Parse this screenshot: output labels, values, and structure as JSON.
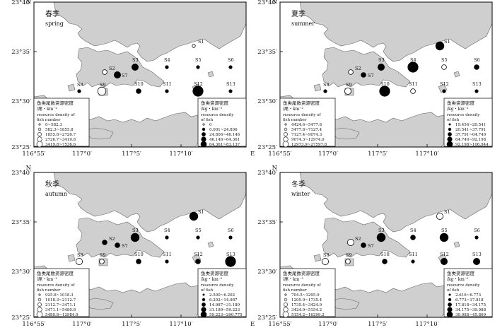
{
  "maps": [
    {
      "id": "spring",
      "season_cn": "春季",
      "season_en": "spring",
      "n_label": "N",
      "e_label": "E",
      "y_ticks": [
        "23°40′",
        "23°35′",
        "23°30′",
        "23°25′"
      ],
      "x_ticks": [
        "116°55′",
        "117°0′",
        "117°5′",
        "117°10′"
      ],
      "stations": {
        "S1": "S1",
        "S2": "S2",
        "S3": "S3",
        "S4": "S4",
        "S5": "S5",
        "S6": "S6",
        "S7": "S7",
        "S8": "S8",
        "S9": "S9",
        "S10": "S10",
        "S11": "S11",
        "S12": "S12",
        "S13": "S13"
      },
      "legend_number": {
        "title_cn_1": "鱼类尾数资源密度",
        "title_cn_2": "/尾・km⁻²",
        "title_en_1": "resource density of",
        "title_en_2": "fish number",
        "classes": [
          "0~582.3",
          "582.3~1855.8",
          "1855.8~2726.7",
          "2726.7~3419.8",
          "3419.8~7536.6"
        ]
      },
      "legend_weight": {
        "title_cn_1": "鱼类资源密度",
        "title_cn_2": "/kg・km⁻²",
        "title_en_1": "resource density",
        "title_en_2": "of fish",
        "classes": [
          "0",
          "0.001~24.806",
          "24.806~46.146",
          "46.146~64.361",
          "64.361~83.137"
        ]
      }
    },
    {
      "id": "summer",
      "season_cn": "夏季",
      "season_en": "summer",
      "n_label": "N",
      "e_label": "E",
      "y_ticks": [
        "23°40′",
        "23°35′",
        "23°30′",
        "23°25′"
      ],
      "x_ticks": [
        "116°55′",
        "117°0′",
        "117°5′",
        "117°10′"
      ],
      "stations": {
        "S1": "S1",
        "S2": "S2",
        "S3": "S3",
        "S4": "S4",
        "S5": "S5",
        "S6": "S6",
        "S7": "S7",
        "S8": "S8",
        "S9": "S9",
        "S10": "S10",
        "S11": "S11",
        "S12": "S12",
        "S13": "S13"
      },
      "legend_number": {
        "title_cn_1": "鱼类尾数资源密度",
        "title_cn_2": "/尾・km⁻²",
        "title_en_1": "resource density of",
        "title_en_2": "fish number",
        "classes": [
          "4424.6~5477.8",
          "5477.8~7127.4",
          "7127.4~9074.3",
          "9074.3~12974.0",
          "12973.9~27597.8"
        ]
      },
      "legend_weight": {
        "title_cn_1": "鱼类资源密度",
        "title_cn_2": "/kg・km⁻²",
        "title_en_1": "resource density",
        "title_en_2": "of fish",
        "classes": [
          "19.456~20.541",
          "20.541~37.791",
          "37.791~64.740",
          "64.740~92.198",
          "92.198~106.944"
        ]
      }
    },
    {
      "id": "autumn",
      "season_cn": "秋季",
      "season_en": "autumn",
      "n_label": "N",
      "e_label": "E",
      "y_ticks": [
        "23°40′",
        "23°35′",
        "23°30′",
        "23°25′"
      ],
      "x_ticks": [
        "116°55′",
        "117°0′",
        "117°5′",
        "117°10′"
      ],
      "stations": {
        "S1": "S1",
        "S2": "S2",
        "S3": "S3",
        "S4": "S4",
        "S5": "S5",
        "S6": "S6",
        "S7": "S7",
        "S8": "S8",
        "S9": "S9",
        "S10": "S10",
        "S11": "S11",
        "S12": "S12",
        "S13": "S13"
      },
      "legend_number": {
        "title_cn_1": "鱼类尾数资源密度",
        "title_cn_2": "/尾・km⁻²",
        "title_en_1": "resource density of",
        "title_en_2": "fish number",
        "classes": [
          "925.8~1018.3",
          "1018.3~2112.7",
          "2112.7~3471.1",
          "3471.1~5480.8",
          "5480.8~12984.9"
        ]
      },
      "legend_weight": {
        "title_cn_1": "鱼类资源密度",
        "title_cn_2": "/kg・km⁻²",
        "title_en_1": "resource density",
        "title_en_2": "of fish",
        "classes": [
          "2.500~6.202",
          "6.202~14.987",
          "14.987~31.189",
          "31.189~59.223",
          "59.223~290.775"
        ]
      }
    },
    {
      "id": "winter",
      "season_cn": "冬季",
      "season_en": "winter",
      "n_label": "N",
      "e_label": "E",
      "y_ticks": [
        "23°40′",
        "23°35′",
        "23°30′",
        "23°25′"
      ],
      "x_ticks": [
        "116°55′",
        "117°0′",
        "117°5′",
        "117°10′"
      ],
      "stations": {
        "S1": "S1",
        "S2": "S2",
        "S3": "S3",
        "S4": "S4",
        "S5": "S5",
        "S6": "S6",
        "S7": "S7",
        "S8": "S8",
        "S9": "S9",
        "S10": "S10",
        "S11": "S11",
        "S12": "S12",
        "S13": "S13"
      },
      "legend_number": {
        "title_cn_1": "鱼类尾数资源密度",
        "title_cn_2": "/尾・km⁻²",
        "title_en_1": "resource density of",
        "title_en_2": "fish number",
        "classes": [
          "704.5~1295.9",
          "1295.9~1735.4",
          "1735.4~3424.9",
          "3424.9~5154.2",
          "5154.2~16299.2"
        ]
      },
      "legend_weight": {
        "title_cn_1": "鱼类资源密度",
        "title_cn_2": "/kg・km⁻²",
        "title_en_1": "resource density",
        "title_en_2": "of fish",
        "classes": [
          "2.616~6.773",
          "6.773~17.818",
          "17.818~34.175",
          "34.175~39.988",
          "39.988~45.869"
        ]
      }
    }
  ]
}
